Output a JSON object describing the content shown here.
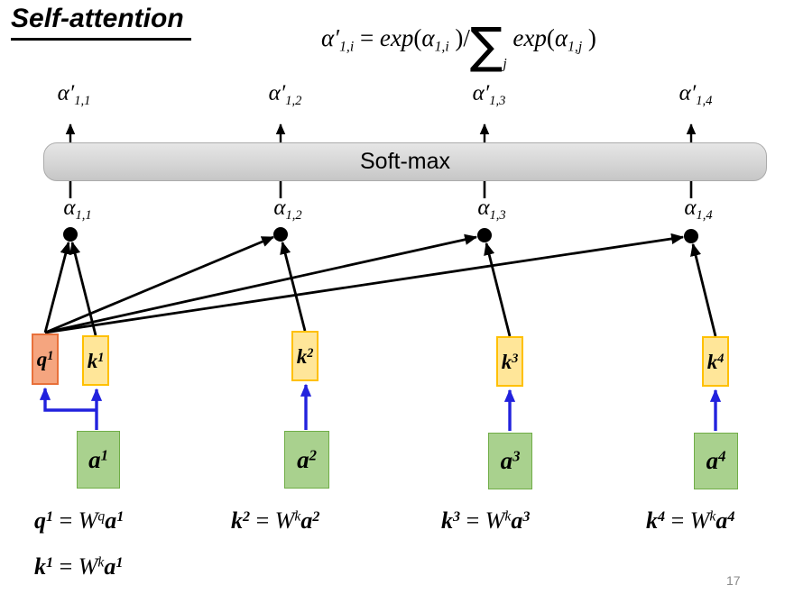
{
  "title": "Self-attention",
  "formula": [
    [
      "i",
      "α′"
    ],
    [
      "isub",
      "1,i"
    ],
    [
      "n",
      " = "
    ],
    [
      "i",
      "exp"
    ],
    [
      "n",
      "("
    ],
    [
      "i",
      "α"
    ],
    [
      "isub",
      "1,i"
    ],
    [
      "n",
      " )/"
    ],
    [
      "big",
      "∑"
    ],
    [
      "jsub",
      "j"
    ],
    [
      "n",
      " "
    ],
    [
      "i",
      "exp"
    ],
    [
      "n",
      "("
    ],
    [
      "i",
      "α"
    ],
    [
      "isub",
      "1,j"
    ],
    [
      "n",
      " )"
    ]
  ],
  "softmax": {
    "label": "Soft-max"
  },
  "columns": [
    {
      "alpha_prime": [
        [
          "i",
          "α′"
        ],
        [
          "isub",
          "1,1"
        ]
      ],
      "alpha": [
        [
          "i",
          "α"
        ],
        [
          "isub",
          "1,1"
        ]
      ]
    },
    {
      "alpha_prime": [
        [
          "i",
          "α′"
        ],
        [
          "isub",
          "1,2"
        ]
      ],
      "alpha": [
        [
          "i",
          "α"
        ],
        [
          "isub",
          "1,2"
        ]
      ]
    },
    {
      "alpha_prime": [
        [
          "i",
          "α′"
        ],
        [
          "isub",
          "1,3"
        ]
      ],
      "alpha": [
        [
          "i",
          "α"
        ],
        [
          "isub",
          "1,3"
        ]
      ]
    },
    {
      "alpha_prime": [
        [
          "i",
          "α′"
        ],
        [
          "isub",
          "1,4"
        ]
      ],
      "alpha": [
        [
          "i",
          "α"
        ],
        [
          "isub",
          "1,4"
        ]
      ]
    }
  ],
  "boxes": {
    "q1": [
      [
        "bi",
        "q"
      ],
      [
        "bisup",
        "1"
      ]
    ],
    "k1": [
      [
        "bi",
        "k"
      ],
      [
        "bisup",
        "1"
      ]
    ],
    "k2": [
      [
        "bi",
        "k"
      ],
      [
        "bisup",
        "2"
      ]
    ],
    "k3": [
      [
        "bi",
        "k"
      ],
      [
        "bisup",
        "3"
      ]
    ],
    "k4": [
      [
        "bi",
        "k"
      ],
      [
        "bisup",
        "4"
      ]
    ],
    "a1": [
      [
        "bi",
        "a"
      ],
      [
        "bisup",
        "1"
      ]
    ],
    "a2": [
      [
        "bi",
        "a"
      ],
      [
        "bisup",
        "2"
      ]
    ],
    "a3": [
      [
        "bi",
        "a"
      ],
      [
        "bisup",
        "3"
      ]
    ],
    "a4": [
      [
        "bi",
        "a"
      ],
      [
        "bisup",
        "4"
      ]
    ]
  },
  "equations": {
    "q1": [
      [
        "bi",
        "q"
      ],
      [
        "bisup",
        "1"
      ],
      [
        "n",
        " = "
      ],
      [
        "i",
        "W"
      ],
      [
        "isup",
        "q"
      ],
      [
        "bi",
        "a"
      ],
      [
        "bisup",
        "1"
      ]
    ],
    "k1": [
      [
        "bi",
        "k"
      ],
      [
        "bisup",
        "1"
      ],
      [
        "n",
        " = "
      ],
      [
        "i",
        "W"
      ],
      [
        "isup",
        "k"
      ],
      [
        "bi",
        "a"
      ],
      [
        "bisup",
        "1"
      ]
    ],
    "k2": [
      [
        "bi",
        "k"
      ],
      [
        "bisup",
        "2"
      ],
      [
        "n",
        " = "
      ],
      [
        "i",
        "W"
      ],
      [
        "isup",
        "k"
      ],
      [
        "bi",
        "a"
      ],
      [
        "bisup",
        "2"
      ]
    ],
    "k3": [
      [
        "bi",
        "k"
      ],
      [
        "bisup",
        "3"
      ],
      [
        "n",
        " = "
      ],
      [
        "i",
        "W"
      ],
      [
        "isup",
        "k"
      ],
      [
        "bi",
        "a"
      ],
      [
        "bisup",
        "3"
      ]
    ],
    "k4": [
      [
        "bi",
        "k"
      ],
      [
        "bisup",
        "4"
      ],
      [
        "n",
        " = "
      ],
      [
        "i",
        "W"
      ],
      [
        "isup",
        "k"
      ],
      [
        "bi",
        "a"
      ],
      [
        "bisup",
        "4"
      ]
    ]
  },
  "page_number": "17",
  "colors": {
    "q_fill": "#F5A57F",
    "q_border": "#E8703A",
    "k_fill": "#FFE699",
    "k_border": "#FFC000",
    "a_fill": "#A9D18E",
    "a_border": "#70AD47",
    "arrow_blue": "#2222DD",
    "line_black": "#000000",
    "softmax_fill": "#D4D4D4",
    "softmax_border": "#ABABAB",
    "page_number_gray": "#8A8A8A"
  }
}
